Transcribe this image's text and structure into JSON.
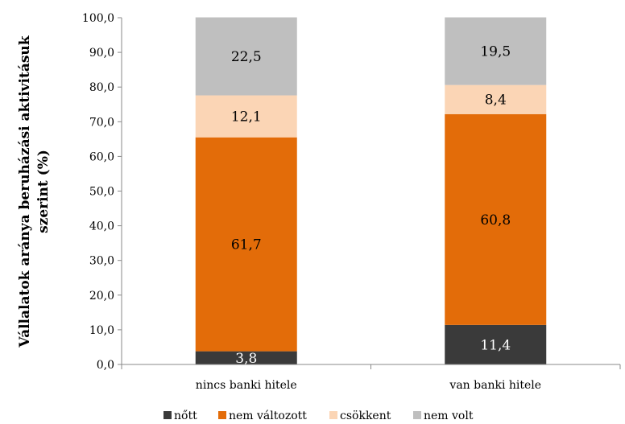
{
  "chart_data": {
    "type": "bar",
    "stacked": true,
    "categories": [
      "nincs banki hitele",
      "van banki hitele"
    ],
    "series": [
      {
        "name": "nőtt",
        "values": [
          3.8,
          11.4
        ],
        "color": "#3a3a3a",
        "label_color": "#ffffff"
      },
      {
        "name": "nem változott",
        "values": [
          61.7,
          60.8
        ],
        "color": "#e36c09",
        "label_color": "#000000"
      },
      {
        "name": "csökkent",
        "values": [
          12.1,
          8.4
        ],
        "color": "#fbd5b5",
        "label_color": "#000000"
      },
      {
        "name": "nem volt",
        "values": [
          22.5,
          19.5
        ],
        "color": "#bfbfbf",
        "label_color": "#000000"
      }
    ],
    "ylabel_lines": [
      "Vállalatok aránya beruházási aktivitásuk",
      "szerint (%)"
    ],
    "ylim": [
      0,
      100
    ],
    "yticks": [
      "0,0",
      "10,0",
      "20,0",
      "30,0",
      "40,0",
      "50,0",
      "60,0",
      "70,0",
      "80,0",
      "90,0",
      "100,0"
    ],
    "grid": false,
    "legend_position": "bottom"
  }
}
